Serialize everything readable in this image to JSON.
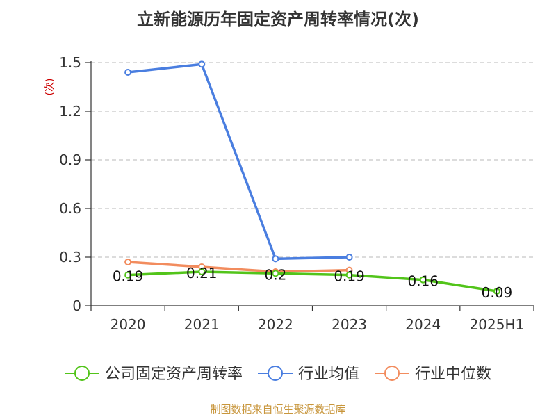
{
  "chart_data": {
    "type": "line",
    "title": "立新能源历年固定资产周转率情况(次)",
    "ylabel": "(次)",
    "categories": [
      "2020",
      "2021",
      "2022",
      "2023",
      "2024",
      "2025H1"
    ],
    "ylim": [
      0,
      1.5
    ],
    "yticks": [
      "0",
      "0.3",
      "0.6",
      "0.9",
      "1.2",
      "1.5"
    ],
    "grid": true,
    "legend_position": "bottom",
    "series": [
      {
        "name": "公司固定资产周转率",
        "color": "#52c41a",
        "values": [
          0.19,
          0.21,
          0.2,
          0.19,
          0.16,
          0.09
        ],
        "labels": [
          "0.19",
          "0.21",
          "0.2",
          "0.19",
          "0.16",
          "0.09"
        ]
      },
      {
        "name": "行业均值",
        "color": "#4a7ee0",
        "values": [
          1.44,
          1.49,
          0.29,
          0.3,
          null,
          null
        ]
      },
      {
        "name": "行业中位数",
        "color": "#f28c5e",
        "values": [
          0.27,
          0.24,
          0.21,
          0.22,
          null,
          null
        ]
      }
    ]
  },
  "source": "制图数据来自恒生聚源数据库"
}
